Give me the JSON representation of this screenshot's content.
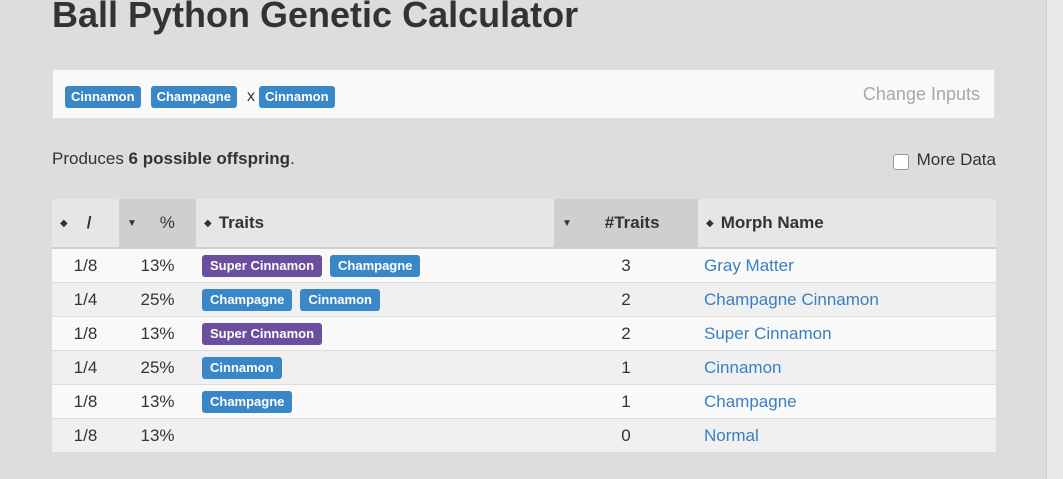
{
  "page": {
    "title": "Ball Python Genetic Calculator"
  },
  "inputs": {
    "parent1": [
      "Cinnamon",
      "Champagne"
    ],
    "cross_symbol": "x",
    "parent2": [
      "Cinnamon"
    ],
    "change_label": "Change Inputs"
  },
  "summary": {
    "prefix": "Produces ",
    "bold": "6 possible offspring",
    "suffix": "."
  },
  "more_data": {
    "label": "More Data",
    "checked": false
  },
  "table": {
    "headers": {
      "fraction": "/",
      "percent": "%",
      "traits": "Traits",
      "num_traits": "#Traits",
      "morph_name": "Morph Name"
    },
    "rows": [
      {
        "fraction": "1/8",
        "percent": "13%",
        "traits": [
          {
            "label": "Super Cinnamon",
            "color": "purple"
          },
          {
            "label": "Champagne",
            "color": "blue"
          }
        ],
        "num_traits": "3",
        "morph": "Gray Matter"
      },
      {
        "fraction": "1/4",
        "percent": "25%",
        "traits": [
          {
            "label": "Champagne",
            "color": "blue"
          },
          {
            "label": "Cinnamon",
            "color": "blue"
          }
        ],
        "num_traits": "2",
        "morph": "Champagne Cinnamon"
      },
      {
        "fraction": "1/8",
        "percent": "13%",
        "traits": [
          {
            "label": "Super Cinnamon",
            "color": "purple"
          }
        ],
        "num_traits": "2",
        "morph": "Super Cinnamon"
      },
      {
        "fraction": "1/4",
        "percent": "25%",
        "traits": [
          {
            "label": "Cinnamon",
            "color": "blue"
          }
        ],
        "num_traits": "1",
        "morph": "Cinnamon"
      },
      {
        "fraction": "1/8",
        "percent": "13%",
        "traits": [
          {
            "label": "Champagne",
            "color": "blue"
          }
        ],
        "num_traits": "1",
        "morph": "Champagne"
      },
      {
        "fraction": "1/8",
        "percent": "13%",
        "traits": [],
        "num_traits": "0",
        "morph": "Normal"
      }
    ]
  },
  "colors": {
    "blue_tag": "#3a87c8",
    "purple_tag": "#6b4f9e",
    "link": "#3a7fbf"
  }
}
